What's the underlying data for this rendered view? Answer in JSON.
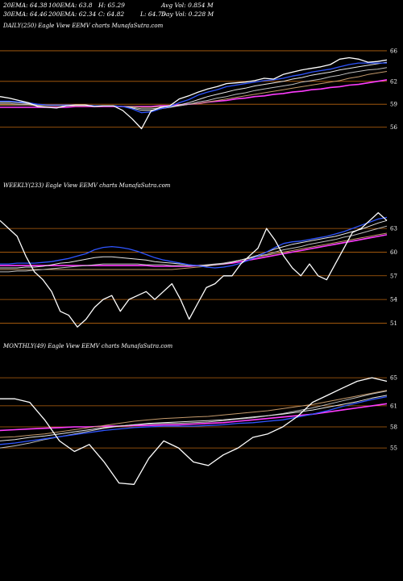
{
  "colors": {
    "background": "#000000",
    "text": "#ffffff",
    "price": "#ffffff",
    "ema20": "#2f55ff",
    "ema30": "#e6e6e6",
    "ema50": "#bfbfbf",
    "ema100": "#c49a6c",
    "ema200": "#ff3cff",
    "gridline": "#b8640f"
  },
  "stats": {
    "ema20": "20EMA: 64.38",
    "ema30": "30EMA: 64.46",
    "ema100": "100EMA: 63.8",
    "ema200": "200EMA: 62.34",
    "high": "H: 65.29",
    "close": "C: 64.82",
    "avg_vol": "Avg Vol: 0.854  M",
    "low": "L: 64.75",
    "day_vol": "Day Vol: 0.228 M"
  },
  "chart_data": [
    {
      "type": "line",
      "title": "DAILY(250) Eagle  View  EEMV charts MunafaSutra.com",
      "ylim": [
        53,
        68
      ],
      "yticks": [
        66,
        62,
        59,
        56
      ],
      "grid": true,
      "series": [
        {
          "key": "price",
          "values": [
            60.0,
            59.8,
            59.5,
            59.2,
            58.7,
            58.6,
            58.5,
            58.8,
            58.9,
            58.9,
            58.7,
            58.8,
            58.8,
            58.2,
            57.1,
            55.8,
            58.1,
            58.6,
            58.8,
            59.7,
            60.1,
            60.6,
            61.0,
            61.3,
            61.7,
            61.8,
            61.9,
            62.1,
            62.4,
            62.3,
            62.9,
            63.2,
            63.5,
            63.7,
            63.9,
            64.2,
            64.9,
            65.1,
            64.9,
            64.5,
            64.6,
            64.8
          ]
        },
        {
          "key": "ema20",
          "values": [
            59.4,
            59.4,
            59.3,
            59.2,
            59.0,
            58.9,
            58.9,
            58.9,
            58.9,
            58.9,
            58.8,
            58.8,
            58.8,
            58.7,
            58.4,
            57.9,
            58.0,
            58.4,
            58.7,
            59.2,
            59.6,
            60.2,
            60.6,
            60.9,
            61.3,
            61.5,
            61.7,
            61.9,
            62.1,
            62.2,
            62.4,
            62.7,
            62.9,
            63.2,
            63.4,
            63.6,
            63.9,
            64.2,
            64.4,
            64.4,
            64.4,
            64.4
          ]
        },
        {
          "key": "ema30",
          "values": [
            59.3,
            59.3,
            59.2,
            59.1,
            59.0,
            58.9,
            58.9,
            58.9,
            58.9,
            58.9,
            58.8,
            58.8,
            58.8,
            58.7,
            58.5,
            58.2,
            58.2,
            58.4,
            58.6,
            58.9,
            59.2,
            59.6,
            60.0,
            60.3,
            60.6,
            60.9,
            61.1,
            61.4,
            61.6,
            61.8,
            62.0,
            62.3,
            62.5,
            62.8,
            63.0,
            63.2,
            63.5,
            63.7,
            63.9,
            64.1,
            64.3,
            64.5
          ]
        },
        {
          "key": "ema50",
          "values": [
            59.1,
            59.1,
            59.0,
            59.0,
            58.9,
            58.9,
            58.9,
            58.9,
            58.9,
            58.9,
            58.8,
            58.8,
            58.8,
            58.7,
            58.6,
            58.4,
            58.4,
            58.5,
            58.6,
            58.8,
            59.0,
            59.3,
            59.5,
            59.8,
            60.0,
            60.3,
            60.5,
            60.8,
            61.0,
            61.2,
            61.4,
            61.6,
            61.9,
            62.1,
            62.3,
            62.6,
            62.8,
            63.1,
            63.3,
            63.5,
            63.6,
            63.8
          ]
        },
        {
          "key": "ema100",
          "values": [
            58.9,
            58.9,
            58.9,
            58.9,
            58.8,
            58.8,
            58.8,
            58.8,
            58.8,
            58.8,
            58.8,
            58.8,
            58.8,
            58.7,
            58.7,
            58.6,
            58.6,
            58.7,
            58.7,
            58.8,
            59.0,
            59.1,
            59.3,
            59.5,
            59.7,
            59.9,
            60.1,
            60.3,
            60.5,
            60.7,
            60.9,
            61.1,
            61.3,
            61.5,
            61.7,
            61.9,
            62.1,
            62.4,
            62.6,
            62.9,
            63.1,
            63.3
          ]
        },
        {
          "key": "ema200",
          "values": [
            58.6,
            58.6,
            58.6,
            58.6,
            58.6,
            58.6,
            58.6,
            58.6,
            58.7,
            58.7,
            58.7,
            58.7,
            58.7,
            58.7,
            58.7,
            58.7,
            58.7,
            58.8,
            58.8,
            58.9,
            59.0,
            59.1,
            59.3,
            59.4,
            59.5,
            59.7,
            59.8,
            60.0,
            60.1,
            60.3,
            60.4,
            60.6,
            60.7,
            60.9,
            61.0,
            61.2,
            61.3,
            61.5,
            61.6,
            61.8,
            62.0,
            62.2
          ]
        }
      ]
    },
    {
      "type": "line",
      "title": "WEEKLY(233) Eagle  View  EEMV charts MunafaSutra.com",
      "ylim": [
        49,
        67
      ],
      "yticks": [
        63,
        60,
        57,
        54,
        51
      ],
      "grid": true,
      "series": [
        {
          "key": "price",
          "values": [
            64.0,
            63.0,
            62.0,
            59.5,
            57.5,
            56.5,
            55.0,
            52.5,
            52.0,
            50.5,
            51.5,
            53.0,
            54.0,
            54.5,
            52.5,
            54.0,
            54.5,
            55.0,
            54.0,
            55.0,
            56.0,
            54.0,
            51.5,
            53.5,
            55.5,
            56.0,
            57.0,
            57.0,
            58.5,
            59.5,
            60.5,
            63.0,
            61.5,
            59.5,
            58.0,
            57.0,
            58.5,
            57.0,
            56.5,
            58.5,
            60.5,
            62.5,
            63.0,
            64.0,
            65.0,
            64.0
          ]
        },
        {
          "key": "ema20",
          "values": [
            58.5,
            58.5,
            58.6,
            58.6,
            58.6,
            58.7,
            58.8,
            59.0,
            59.2,
            59.5,
            59.8,
            60.3,
            60.6,
            60.7,
            60.6,
            60.4,
            60.1,
            59.7,
            59.3,
            59.0,
            58.8,
            58.6,
            58.4,
            58.3,
            58.1,
            58.0,
            58.1,
            58.3,
            58.6,
            59.0,
            59.5,
            60.0,
            60.6,
            61.1,
            61.3,
            61.4,
            61.6,
            61.8,
            62.0,
            62.3,
            62.6,
            63.0,
            63.4,
            63.8,
            64.2,
            64.4
          ]
        },
        {
          "key": "ema30",
          "values": [
            58.0,
            58.0,
            58.0,
            58.1,
            58.1,
            58.2,
            58.4,
            58.6,
            58.7,
            58.9,
            59.1,
            59.3,
            59.4,
            59.4,
            59.3,
            59.2,
            59.1,
            59.0,
            58.8,
            58.7,
            58.6,
            58.5,
            58.4,
            58.3,
            58.3,
            58.4,
            58.5,
            58.7,
            59.0,
            59.3,
            59.6,
            60.0,
            60.4,
            60.7,
            61.0,
            61.2,
            61.4,
            61.6,
            61.8,
            62.0,
            62.3,
            62.6,
            62.9,
            63.3,
            63.7,
            64.0
          ]
        },
        {
          "key": "ema50",
          "values": [
            57.5,
            57.5,
            57.6,
            57.6,
            57.7,
            57.8,
            57.9,
            58.0,
            58.1,
            58.2,
            58.3,
            58.4,
            58.5,
            58.5,
            58.5,
            58.5,
            58.5,
            58.4,
            58.4,
            58.4,
            58.3,
            58.3,
            58.3,
            58.3,
            58.4,
            58.5,
            58.6,
            58.8,
            59.0,
            59.2,
            59.5,
            59.7,
            60.0,
            60.3,
            60.5,
            60.7,
            61.0,
            61.2,
            61.4,
            61.6,
            61.9,
            62.1,
            62.4,
            62.7,
            63.0,
            63.3
          ]
        },
        {
          "key": "ema100",
          "values": [
            57.8,
            57.8,
            57.8,
            57.8,
            57.8,
            57.8,
            57.8,
            57.8,
            57.8,
            57.8,
            57.8,
            57.8,
            57.8,
            57.8,
            57.8,
            57.8,
            57.8,
            57.8,
            57.8,
            57.8,
            57.8,
            57.9,
            58.0,
            58.1,
            58.2,
            58.4,
            58.6,
            58.8,
            59.0,
            59.2,
            59.4,
            59.6,
            59.8,
            60.0,
            60.2,
            60.4,
            60.6,
            60.8,
            61.0,
            61.2,
            61.4,
            61.6,
            61.8,
            62.0,
            62.2,
            62.4
          ]
        },
        {
          "key": "ema200",
          "values": [
            58.3,
            58.3,
            58.3,
            58.3,
            58.3,
            58.3,
            58.3,
            58.3,
            58.3,
            58.3,
            58.3,
            58.3,
            58.3,
            58.3,
            58.3,
            58.3,
            58.3,
            58.3,
            58.2,
            58.2,
            58.2,
            58.2,
            58.2,
            58.3,
            58.3,
            58.4,
            58.5,
            58.6,
            58.8,
            59.0,
            59.2,
            59.4,
            59.6,
            59.8,
            60.0,
            60.2,
            60.4,
            60.6,
            60.8,
            61.0,
            61.2,
            61.4,
            61.6,
            61.8,
            62.0,
            62.2
          ]
        }
      ]
    },
    {
      "type": "line",
      "title": "MONTHLY(49) Eagle  View  EEMV charts MunafaSutra.com",
      "ylim": [
        48,
        68
      ],
      "yticks": [
        65,
        61,
        58,
        55
      ],
      "grid": true,
      "series": [
        {
          "key": "price",
          "values": [
            62.0,
            62.0,
            61.5,
            59.0,
            56.0,
            54.5,
            55.5,
            53.0,
            50.0,
            49.8,
            53.5,
            56.0,
            55.0,
            53.0,
            52.5,
            54.0,
            55.0,
            56.5,
            57.0,
            58.0,
            59.5,
            61.5,
            62.5,
            63.5,
            64.5,
            65.0,
            64.5
          ]
        },
        {
          "key": "ema20",
          "values": [
            55.5,
            55.7,
            56.0,
            56.3,
            56.6,
            56.9,
            57.2,
            57.5,
            57.7,
            57.9,
            58.0,
            58.1,
            58.1,
            58.1,
            58.2,
            58.3,
            58.5,
            58.6,
            58.8,
            59.0,
            59.4,
            59.8,
            60.3,
            60.9,
            61.4,
            61.9,
            62.3
          ]
        },
        {
          "key": "ema30",
          "values": [
            56.0,
            56.2,
            56.5,
            56.7,
            57.0,
            57.3,
            57.6,
            57.9,
            58.1,
            58.3,
            58.5,
            58.6,
            58.7,
            58.8,
            58.9,
            59.0,
            59.2,
            59.4,
            59.6,
            59.8,
            60.1,
            60.4,
            60.8,
            61.2,
            61.6,
            62.1,
            62.5
          ]
        },
        {
          "key": "ema50",
          "values": [
            55.0,
            55.3,
            55.7,
            56.2,
            56.6,
            57.0,
            57.4,
            57.8,
            58.1,
            58.3,
            58.4,
            58.5,
            58.5,
            58.6,
            58.7,
            58.9,
            59.1,
            59.3,
            59.6,
            59.9,
            60.3,
            60.7,
            61.2,
            61.7,
            62.2,
            62.7,
            63.1
          ]
        },
        {
          "key": "ema100",
          "values": [
            56.5,
            56.6,
            56.8,
            57.0,
            57.3,
            57.6,
            57.9,
            58.2,
            58.5,
            58.8,
            59.0,
            59.2,
            59.3,
            59.4,
            59.5,
            59.7,
            59.9,
            60.1,
            60.3,
            60.6,
            60.9,
            61.2,
            61.6,
            62.0,
            62.4,
            62.8,
            63.2
          ]
        },
        {
          "key": "ema200",
          "values": [
            57.5,
            57.6,
            57.7,
            57.8,
            57.9,
            58.0,
            58.0,
            58.1,
            58.1,
            58.2,
            58.2,
            58.3,
            58.3,
            58.4,
            58.5,
            58.6,
            58.8,
            59.0,
            59.2,
            59.4,
            59.6,
            59.8,
            60.1,
            60.4,
            60.7,
            61.0,
            61.3
          ]
        }
      ]
    }
  ]
}
